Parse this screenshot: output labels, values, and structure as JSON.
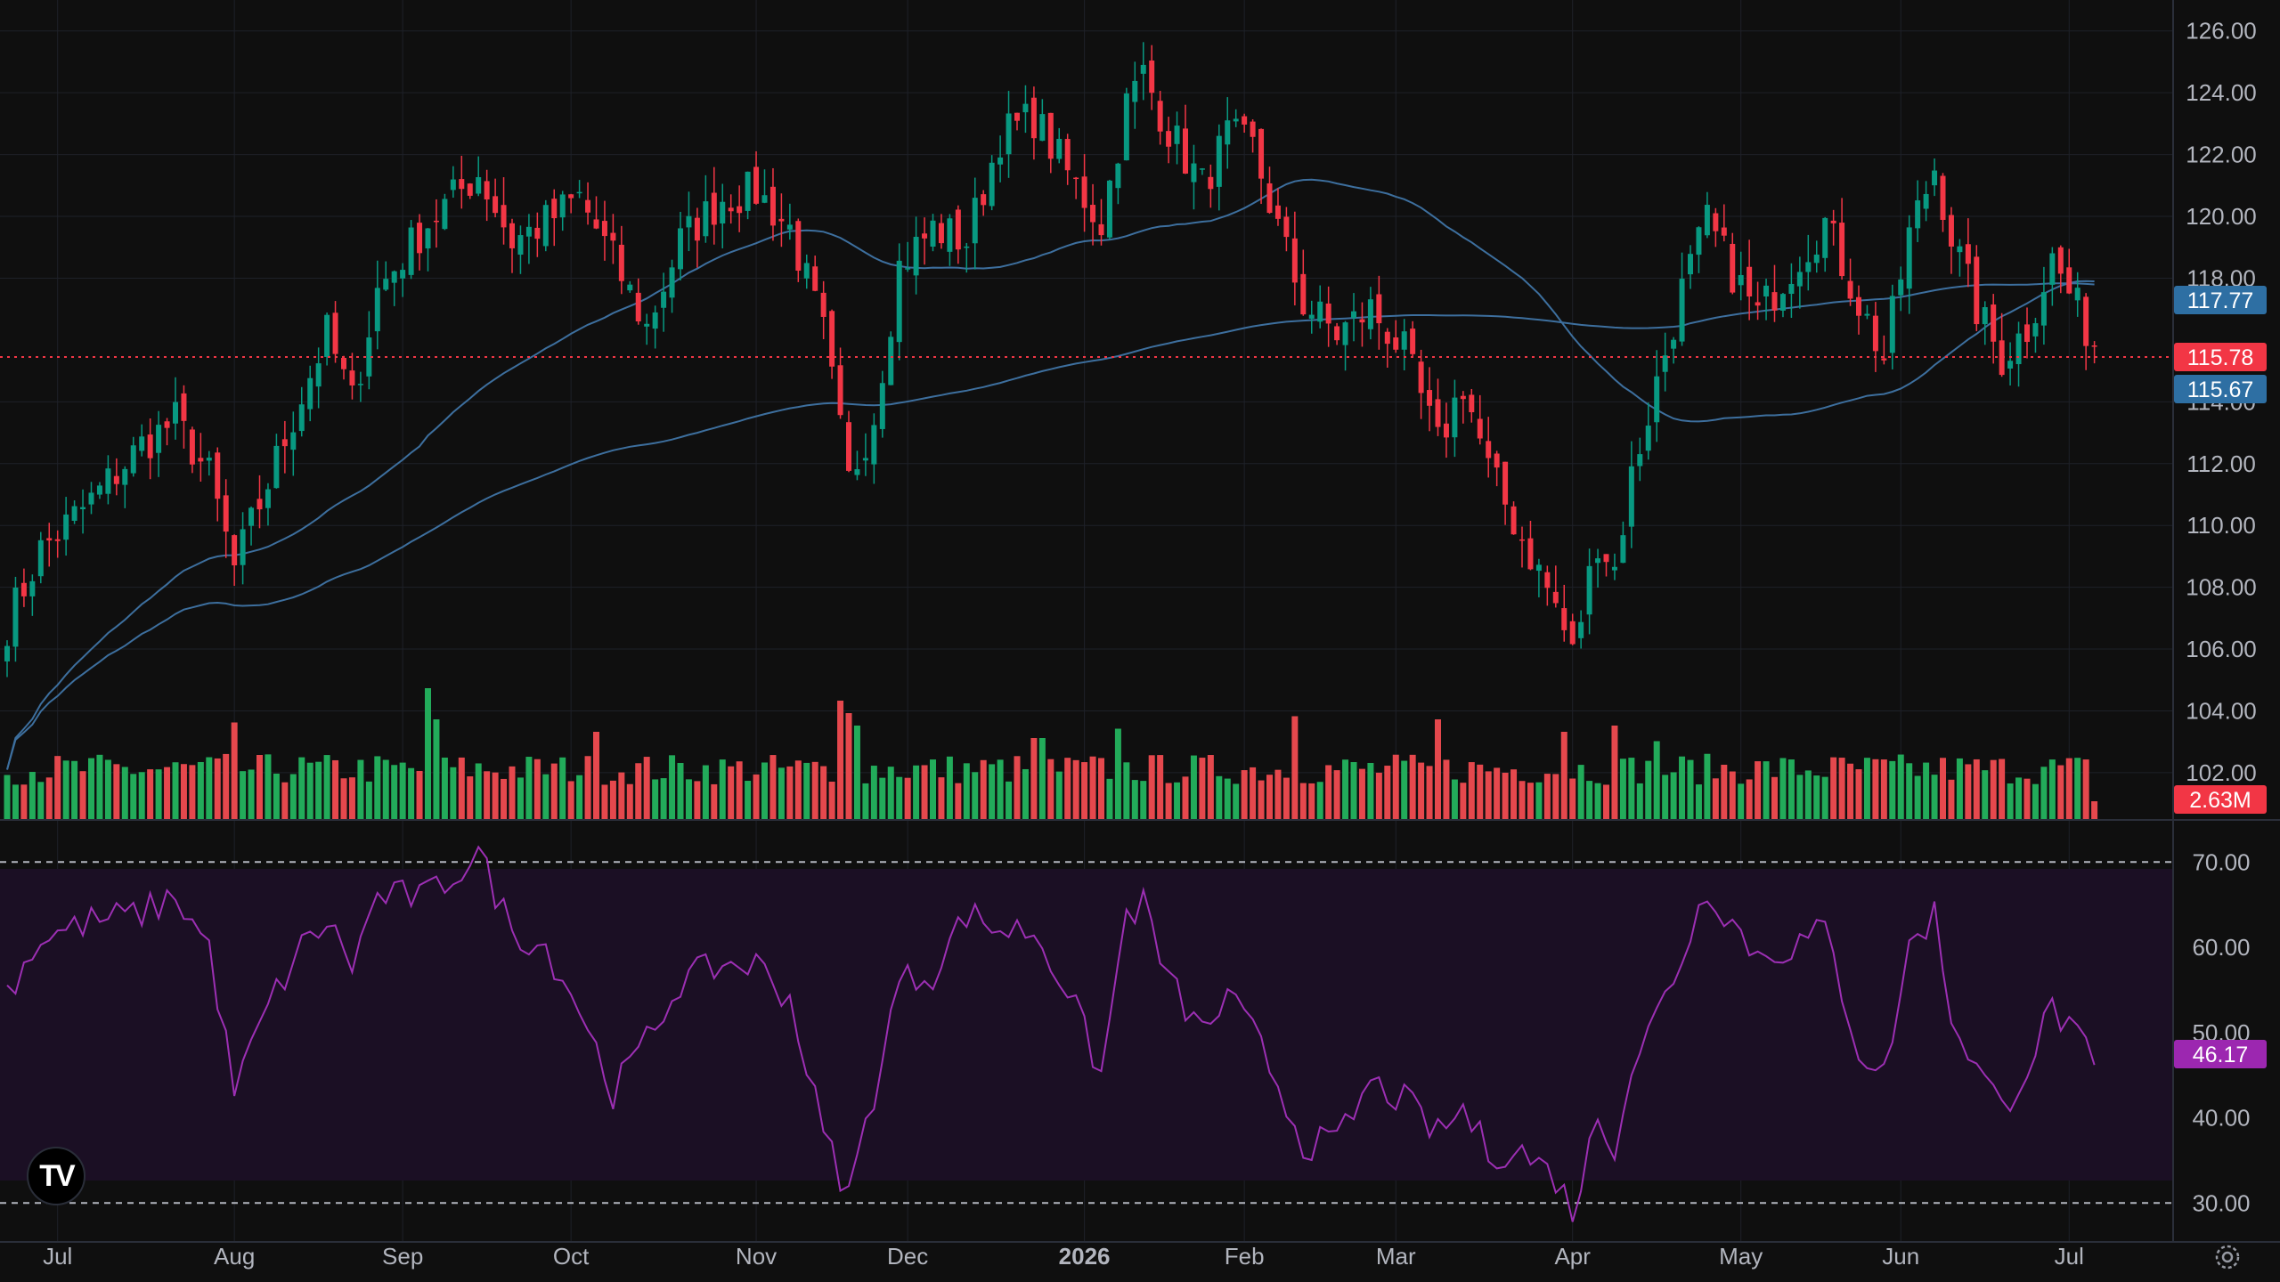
{
  "chart_data": {
    "type": "candlestick",
    "title": "",
    "price_axis": {
      "ticks": [
        "126.00",
        "124.00",
        "122.00",
        "120.00",
        "118.00",
        "114.00",
        "112.00",
        "110.00",
        "108.00",
        "106.00",
        "104.00",
        "102.00"
      ],
      "ylim": [
        100.5,
        127
      ]
    },
    "time_axis": {
      "labels": [
        {
          "text": "Jul",
          "idx": 6
        },
        {
          "text": "Aug",
          "idx": 27
        },
        {
          "text": "Sep",
          "idx": 47
        },
        {
          "text": "Oct",
          "idx": 67
        },
        {
          "text": "Nov",
          "idx": 89
        },
        {
          "text": "Dec",
          "idx": 107
        },
        {
          "text": "2026",
          "idx": 128,
          "bold": true
        },
        {
          "text": "Feb",
          "idx": 147
        },
        {
          "text": "Mar",
          "idx": 165
        },
        {
          "text": "Apr",
          "idx": 186
        },
        {
          "text": "May",
          "idx": 206
        },
        {
          "text": "Jun",
          "idx": 225
        },
        {
          "text": "Jul",
          "idx": 245
        }
      ]
    },
    "price_keypoints": [
      [
        0,
        106.8
      ],
      [
        4,
        109.2
      ],
      [
        10,
        110.8
      ],
      [
        16,
        112.6
      ],
      [
        20,
        113.4
      ],
      [
        24,
        111.6
      ],
      [
        27,
        108.6
      ],
      [
        31,
        111.4
      ],
      [
        35,
        114.2
      ],
      [
        38,
        116.2
      ],
      [
        41,
        114.0
      ],
      [
        44,
        117.6
      ],
      [
        50,
        119.8
      ],
      [
        56,
        121.4
      ],
      [
        60,
        119.2
      ],
      [
        64,
        119.8
      ],
      [
        68,
        120.6
      ],
      [
        72,
        118.6
      ],
      [
        76,
        116.4
      ],
      [
        80,
        119.2
      ],
      [
        85,
        120.6
      ],
      [
        89,
        120.8
      ],
      [
        93,
        119.6
      ],
      [
        97,
        116.2
      ],
      [
        100,
        111.4
      ],
      [
        103,
        113.6
      ],
      [
        106,
        118.4
      ],
      [
        110,
        119.6
      ],
      [
        114,
        119.2
      ],
      [
        118,
        122.6
      ],
      [
        122,
        123.2
      ],
      [
        126,
        121.4
      ],
      [
        130,
        119.8
      ],
      [
        133,
        123.6
      ],
      [
        135,
        124.6
      ],
      [
        138,
        122.8
      ],
      [
        142,
        121.0
      ],
      [
        145,
        122.6
      ],
      [
        148,
        122.2
      ],
      [
        151,
        119.6
      ],
      [
        154,
        117.2
      ],
      [
        158,
        116.2
      ],
      [
        162,
        117.0
      ],
      [
        166,
        115.6
      ],
      [
        170,
        112.6
      ],
      [
        173,
        114.6
      ],
      [
        176,
        111.8
      ],
      [
        180,
        109.6
      ],
      [
        184,
        107.4
      ],
      [
        186,
        105.8
      ],
      [
        189,
        109.6
      ],
      [
        191,
        108.6
      ],
      [
        193,
        111.6
      ],
      [
        196,
        114.6
      ],
      [
        199,
        117.6
      ],
      [
        202,
        119.8
      ],
      [
        205,
        118.2
      ],
      [
        208,
        116.8
      ],
      [
        212,
        118.4
      ],
      [
        216,
        119.8
      ],
      [
        220,
        117.2
      ],
      [
        223,
        115.4
      ],
      [
        226,
        119.4
      ],
      [
        229,
        121.6
      ],
      [
        231,
        119.4
      ],
      [
        234,
        117.0
      ],
      [
        237,
        115.4
      ],
      [
        240,
        116.4
      ],
      [
        243,
        118.6
      ],
      [
        246,
        117.0
      ],
      [
        248,
        115.8
      ]
    ],
    "last_candle_index": 248,
    "ma_fast_label": "117.77",
    "ma_slow_label": "115.67",
    "last_price": 115.78,
    "last_price_label": "115.78",
    "volume": {
      "last_label": "2.63M",
      "spikes": [
        [
          27,
          1.55
        ],
        [
          50,
          2.1
        ],
        [
          51,
          1.6
        ],
        [
          70,
          1.4
        ],
        [
          99,
          1.9
        ],
        [
          100,
          1.7
        ],
        [
          101,
          1.5
        ],
        [
          122,
          1.3
        ],
        [
          123,
          1.3
        ],
        [
          132,
          1.45
        ],
        [
          153,
          1.65
        ],
        [
          170,
          1.6
        ],
        [
          185,
          1.4
        ],
        [
          191,
          1.5
        ],
        [
          196,
          1.25
        ]
      ]
    },
    "rsi": {
      "ticks": [
        "70.00",
        "60.00",
        "50.00",
        "40.00",
        "30.00"
      ],
      "ylim": [
        27,
        74
      ],
      "overbought": 70,
      "oversold": 30,
      "last_label": "46.17",
      "keypoints": [
        [
          0,
          55
        ],
        [
          4,
          61
        ],
        [
          10,
          63
        ],
        [
          16,
          64
        ],
        [
          20,
          66
        ],
        [
          24,
          60
        ],
        [
          27,
          43
        ],
        [
          31,
          53
        ],
        [
          35,
          60
        ],
        [
          38,
          63
        ],
        [
          41,
          58
        ],
        [
          44,
          66
        ],
        [
          50,
          66
        ],
        [
          56,
          71
        ],
        [
          60,
          62
        ],
        [
          64,
          60
        ],
        [
          68,
          53
        ],
        [
          72,
          43
        ],
        [
          76,
          49
        ],
        [
          80,
          56
        ],
        [
          85,
          58
        ],
        [
          89,
          58
        ],
        [
          93,
          54
        ],
        [
          97,
          38
        ],
        [
          100,
          31
        ],
        [
          103,
          43
        ],
        [
          106,
          56
        ],
        [
          110,
          57
        ],
        [
          114,
          64
        ],
        [
          118,
          62
        ],
        [
          122,
          62
        ],
        [
          126,
          55
        ],
        [
          130,
          45
        ],
        [
          133,
          64
        ],
        [
          135,
          65
        ],
        [
          138,
          56
        ],
        [
          142,
          50
        ],
        [
          145,
          54
        ],
        [
          148,
          50
        ],
        [
          151,
          44
        ],
        [
          154,
          37
        ],
        [
          158,
          37
        ],
        [
          162,
          44
        ],
        [
          166,
          42
        ],
        [
          170,
          38
        ],
        [
          173,
          41
        ],
        [
          176,
          36
        ],
        [
          180,
          36
        ],
        [
          184,
          33
        ],
        [
          186,
          29
        ],
        [
          189,
          40
        ],
        [
          191,
          37
        ],
        [
          193,
          46
        ],
        [
          196,
          52
        ],
        [
          199,
          59
        ],
        [
          202,
          67
        ],
        [
          205,
          63
        ],
        [
          208,
          59
        ],
        [
          212,
          60
        ],
        [
          216,
          62
        ],
        [
          220,
          48
        ],
        [
          223,
          45
        ],
        [
          226,
          60
        ],
        [
          229,
          64
        ],
        [
          231,
          52
        ],
        [
          234,
          46
        ],
        [
          237,
          41
        ],
        [
          240,
          46
        ],
        [
          243,
          53
        ],
        [
          246,
          49
        ],
        [
          248,
          46.2
        ]
      ]
    }
  }
}
